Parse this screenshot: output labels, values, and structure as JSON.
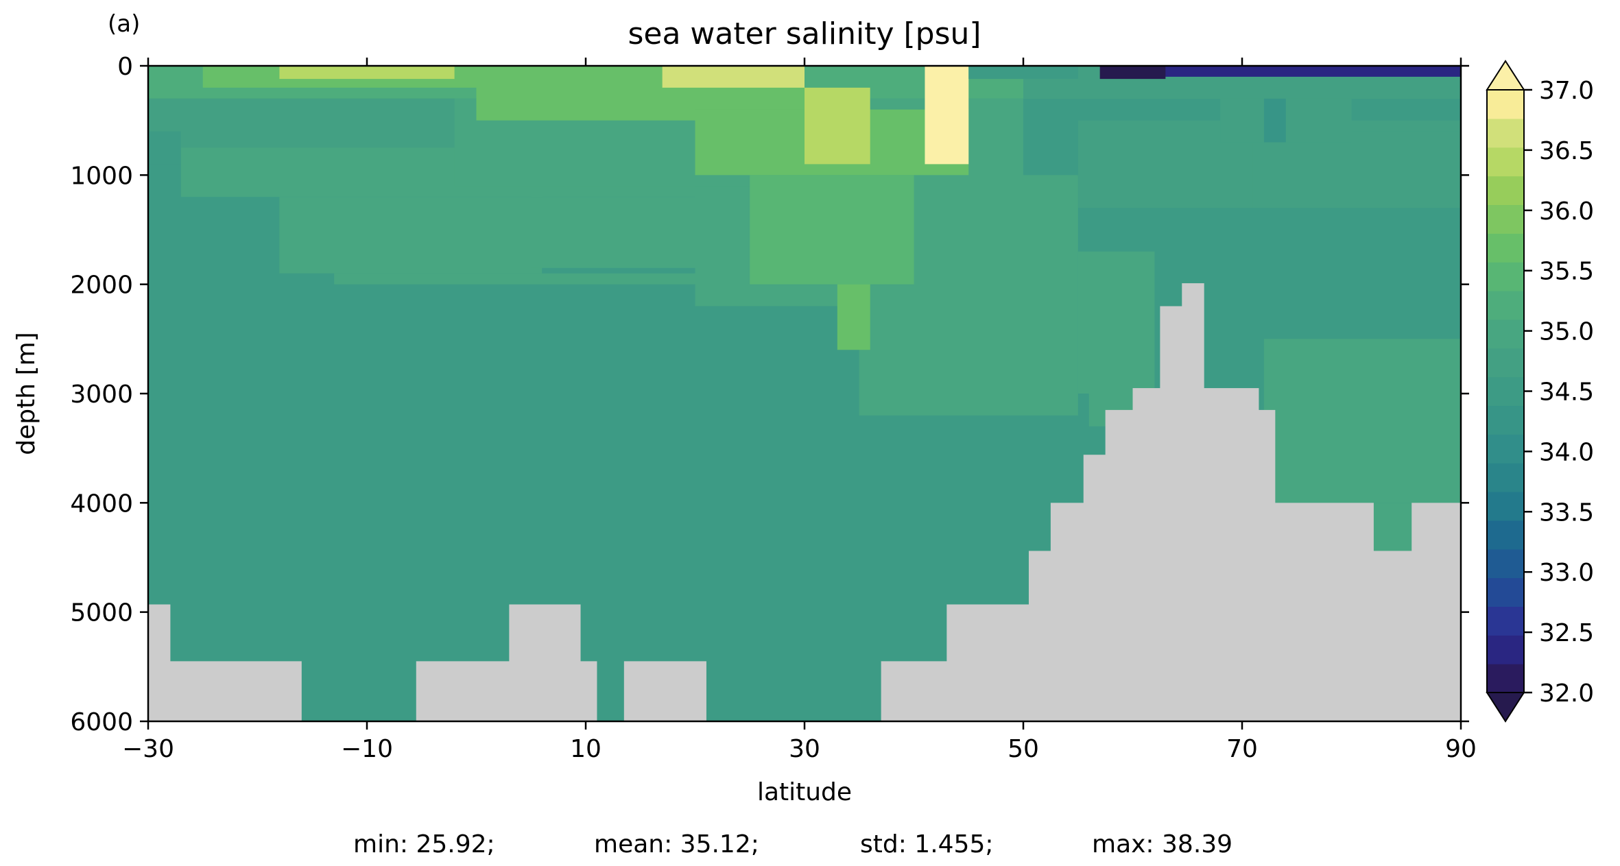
{
  "chart_data": {
    "type": "heatmap",
    "panel_label": "(a)",
    "title": "sea water salinity [psu]",
    "xlabel": "latitude",
    "ylabel": "depth [m]",
    "xlim": [
      -30,
      90
    ],
    "ylim": [
      6000,
      0
    ],
    "x_ticks": [
      -30,
      -10,
      10,
      30,
      50,
      70,
      90
    ],
    "x_tick_labels": [
      "−30",
      "−10",
      "10",
      "30",
      "50",
      "70",
      "90"
    ],
    "y_ticks": [
      0,
      1000,
      2000,
      3000,
      4000,
      5000,
      6000
    ],
    "y_tick_labels": [
      "0",
      "1000",
      "2000",
      "3000",
      "4000",
      "5000",
      "6000"
    ],
    "colorbar": {
      "min": 32.0,
      "max": 37.0,
      "step": 0.25,
      "extend": "both",
      "ticks": [
        32.0,
        32.5,
        33.0,
        33.5,
        34.0,
        34.5,
        35.0,
        35.5,
        36.0,
        36.5,
        37.0
      ],
      "tick_labels": [
        "32.0",
        "32.5",
        "33.0",
        "33.5",
        "34.0",
        "34.5",
        "35.0",
        "35.5",
        "36.0",
        "36.5",
        "37.0"
      ],
      "colors": [
        "#2a1b5e",
        "#2a2682",
        "#2a3694",
        "#234a96",
        "#1f5b93",
        "#1e6a8f",
        "#237a8c",
        "#2a858a",
        "#318e8a",
        "#379587",
        "#3d9b85",
        "#43a083",
        "#48a681",
        "#4ead7c",
        "#58b674",
        "#67bf69",
        "#7ec661",
        "#97cd5b",
        "#b6d865",
        "#d1e07a",
        "#f8ec98"
      ],
      "under_color": "#261a4e",
      "over_color": "#fbf0a8"
    },
    "land_color": "#cccccc",
    "stats": {
      "min": "min: 25.92;",
      "mean": "mean: 35.12;",
      "std": "std: 1.455;",
      "max": "max: 38.39"
    },
    "field_regions": [
      {
        "lat": [
          -30,
          90
        ],
        "depth": [
          0,
          6000
        ],
        "value": 34.7
      },
      {
        "lat": [
          -30,
          90
        ],
        "depth": [
          0,
          300
        ],
        "value": 35.3
      },
      {
        "lat": [
          -30,
          -2
        ],
        "depth": [
          300,
          750
        ],
        "value": 34.8
      },
      {
        "lat": [
          -30,
          -27
        ],
        "depth": [
          600,
          900
        ],
        "value": 34.6
      },
      {
        "lat": [
          -27,
          28
        ],
        "depth": [
          750,
          1200
        ],
        "value": 35.1
      },
      {
        "lat": [
          -18,
          6
        ],
        "depth": [
          1200,
          1900
        ],
        "value": 35.1
      },
      {
        "lat": [
          -13,
          35
        ],
        "depth": [
          1900,
          2000
        ],
        "value": 35.1
      },
      {
        "lat": [
          5,
          20
        ],
        "depth": [
          1200,
          1850
        ],
        "value": 35.2
      },
      {
        "lat": [
          -2,
          50
        ],
        "depth": [
          300,
          1100
        ],
        "value": 35.2
      },
      {
        "lat": [
          20,
          45
        ],
        "depth": [
          1100,
          2200
        ],
        "value": 35.2
      },
      {
        "lat": [
          35,
          55
        ],
        "depth": [
          1000,
          3200
        ],
        "value": 35.1
      },
      {
        "lat": [
          55,
          62
        ],
        "depth": [
          1700,
          3000
        ],
        "value": 35.1
      },
      {
        "lat": [
          56,
          62
        ],
        "depth": [
          3000,
          3300
        ],
        "value": 35.1
      },
      {
        "lat": [
          72,
          90
        ],
        "depth": [
          2500,
          4000
        ],
        "value": 35.1
      },
      {
        "lat": [
          82,
          86
        ],
        "depth": [
          4000,
          4450
        ],
        "value": 35.1
      },
      {
        "lat": [
          55,
          90
        ],
        "depth": [
          500,
          1300
        ],
        "value": 34.95
      },
      {
        "lat": [
          71,
          90
        ],
        "depth": [
          600,
          1300
        ],
        "value": 34.8
      },
      {
        "lat": [
          68,
          80
        ],
        "depth": [
          300,
          700
        ],
        "value": 34.75
      },
      {
        "lat": [
          72,
          74
        ],
        "depth": [
          300,
          700
        ],
        "value": 34.4
      },
      {
        "lat": [
          50,
          90
        ],
        "depth": [
          0,
          300
        ],
        "value": 34.9
      },
      {
        "lat": [
          -25,
          0
        ],
        "depth": [
          0,
          200
        ],
        "value": 35.8
      },
      {
        "lat": [
          0,
          30
        ],
        "depth": [
          0,
          500
        ],
        "value": 35.8
      },
      {
        "lat": [
          20,
          45
        ],
        "depth": [
          400,
          1000
        ],
        "value": 35.9
      },
      {
        "lat": [
          25,
          40
        ],
        "depth": [
          1000,
          2000
        ],
        "value": 35.7
      },
      {
        "lat": [
          33,
          36
        ],
        "depth": [
          2000,
          2600
        ],
        "value": 35.8
      },
      {
        "lat": [
          -18,
          -2
        ],
        "depth": [
          0,
          120
        ],
        "value": 36.7
      },
      {
        "lat": [
          17,
          30
        ],
        "depth": [
          0,
          200
        ],
        "value": 36.8
      },
      {
        "lat": [
          30,
          36
        ],
        "depth": [
          200,
          900
        ],
        "value": 36.5
      },
      {
        "lat": [
          41,
          45
        ],
        "depth": [
          0,
          900
        ],
        "value": 37.2
      },
      {
        "lat": [
          45,
          55
        ],
        "depth": [
          0,
          120
        ],
        "value": 34.6
      },
      {
        "lat": [
          60,
          90
        ],
        "depth": [
          0,
          100
        ],
        "value": 32.3
      },
      {
        "lat": [
          57,
          63
        ],
        "depth": [
          0,
          120
        ],
        "value": 31.5
      }
    ],
    "land_regions": [
      {
        "lat": [
          -30,
          -28
        ],
        "depth": [
          4930,
          6000
        ]
      },
      {
        "lat": [
          -28,
          -16
        ],
        "depth": [
          5450,
          6000
        ]
      },
      {
        "lat": [
          -5.5,
          3
        ],
        "depth": [
          5450,
          6000
        ]
      },
      {
        "lat": [
          3,
          9.5
        ],
        "depth": [
          4930,
          6000
        ]
      },
      {
        "lat": [
          9.5,
          11
        ],
        "depth": [
          5450,
          6000
        ]
      },
      {
        "lat": [
          13.5,
          21
        ],
        "depth": [
          5450,
          6000
        ]
      },
      {
        "lat": [
          37,
          43
        ],
        "depth": [
          5450,
          6000
        ]
      },
      {
        "lat": [
          43,
          50.5
        ],
        "depth": [
          4930,
          6000
        ]
      },
      {
        "lat": [
          50.5,
          52.5
        ],
        "depth": [
          4440,
          6000
        ]
      },
      {
        "lat": [
          52.5,
          55.5
        ],
        "depth": [
          4000,
          6000
        ]
      },
      {
        "lat": [
          55.5,
          57.5
        ],
        "depth": [
          3560,
          6000
        ]
      },
      {
        "lat": [
          57.5,
          60
        ],
        "depth": [
          3150,
          6000
        ]
      },
      {
        "lat": [
          60,
          62.5
        ],
        "depth": [
          2950,
          6000
        ]
      },
      {
        "lat": [
          62.5,
          64.5
        ],
        "depth": [
          2200,
          6000
        ]
      },
      {
        "lat": [
          64.5,
          66.5
        ],
        "depth": [
          1990,
          6000
        ]
      },
      {
        "lat": [
          66.5,
          71.5
        ],
        "depth": [
          2950,
          6000
        ]
      },
      {
        "lat": [
          71.5,
          73
        ],
        "depth": [
          3150,
          6000
        ]
      },
      {
        "lat": [
          73,
          82
        ],
        "depth": [
          4000,
          6000
        ]
      },
      {
        "lat": [
          82,
          85.5
        ],
        "depth": [
          4440,
          6000
        ]
      },
      {
        "lat": [
          85.5,
          90
        ],
        "depth": [
          4000,
          6000
        ]
      }
    ]
  }
}
